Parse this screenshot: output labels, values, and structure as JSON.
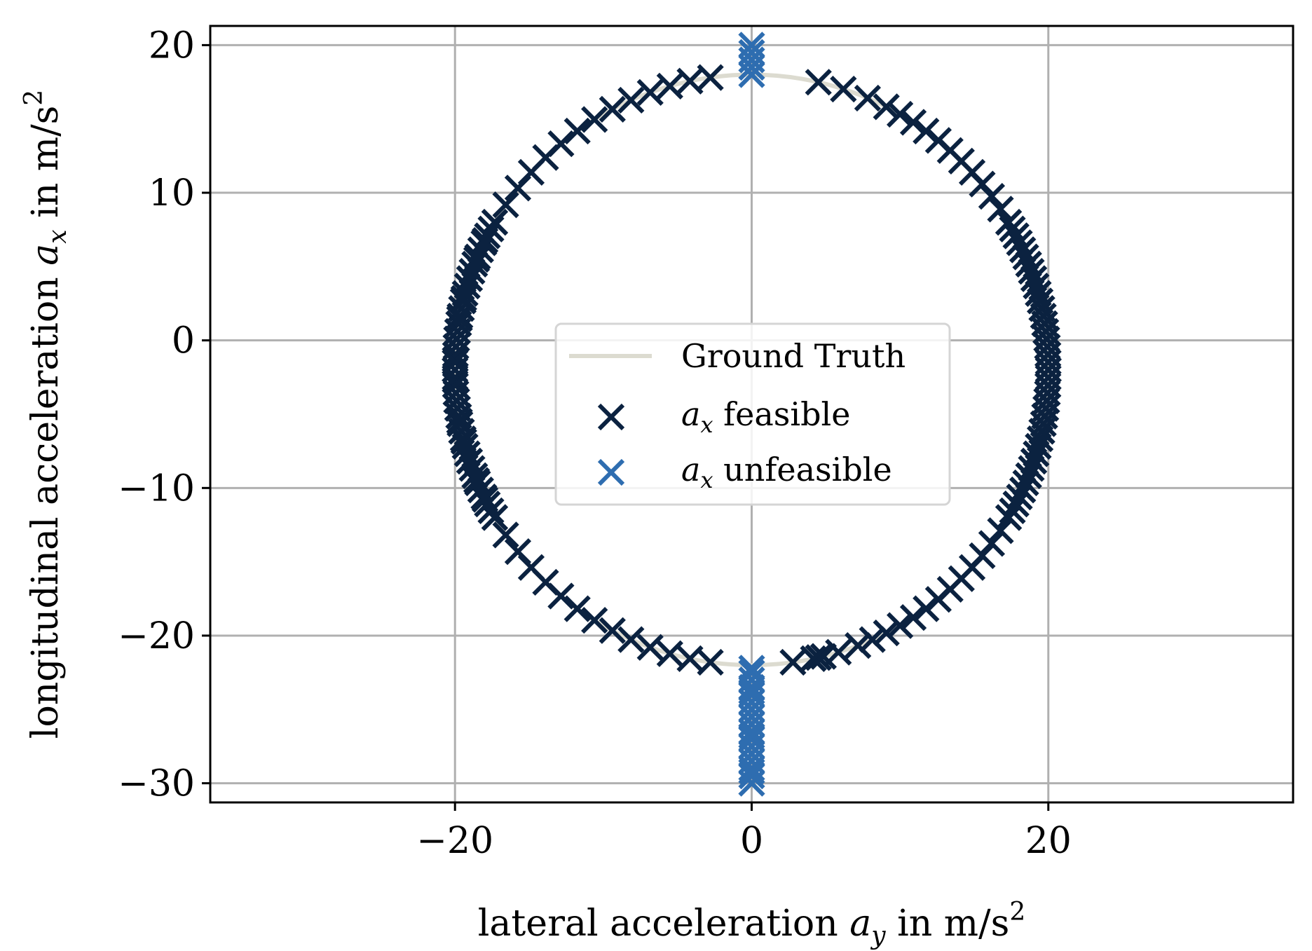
{
  "chart_data": {
    "type": "scatter",
    "title": "",
    "xlabel": "lateral acceleration a_y in m/s²",
    "ylabel": "longitudinal acceleration a_x in m/s²",
    "xlabel_parts": {
      "pre": "lateral acceleration ",
      "var": "a",
      "sub": "y",
      "post": " in m/s",
      "sup": "2"
    },
    "ylabel_parts": {
      "pre": "longitudinal acceleration ",
      "var": "a",
      "sub": "x",
      "post": " in m/s",
      "sup": "2"
    },
    "xlim": [
      -36.5,
      36.5
    ],
    "ylim": [
      -31.3,
      21.3
    ],
    "xticks": [
      -20,
      0,
      20
    ],
    "yticks": [
      -30,
      -20,
      -10,
      0,
      10,
      20
    ],
    "xtick_labels": [
      "−20",
      "0",
      "20"
    ],
    "ytick_labels": [
      "−30",
      "−20",
      "−10",
      "0",
      "10",
      "20"
    ],
    "grid": true,
    "legend_position": "center",
    "ground_truth_ellipse": {
      "center": [
        0,
        -2
      ],
      "radius_y": 20,
      "radius_x": 20
    },
    "series": [
      {
        "name": "Ground Truth",
        "kind": "line",
        "color": "#dcdbd0"
      },
      {
        "name": "a_x feasible",
        "label_var": "a",
        "label_sub": "x",
        "label_post": " feasible",
        "kind": "marker",
        "marker": "x",
        "color": "#0b2240",
        "points_note": "points along ellipse, angles in degrees",
        "angles_deg": [
          13,
          18,
          23,
          27,
          30,
          33,
          36,
          39,
          42,
          45,
          48,
          51,
          54,
          57,
          60,
          63,
          66,
          69,
          72,
          75,
          78,
          81,
          84,
          87,
          90,
          93,
          96,
          99,
          102,
          105,
          108,
          111,
          114,
          117,
          120,
          123,
          126,
          129,
          132,
          135,
          138,
          141,
          144,
          147,
          150,
          153,
          156,
          159,
          163,
          166,
          167,
          168,
          172,
          176,
          180,
          184,
          188,
          192,
          196,
          200,
          204,
          208,
          212,
          216,
          220,
          224,
          228,
          232,
          236,
          240,
          244,
          248,
          252,
          256,
          260,
          264,
          268,
          272,
          276,
          280,
          284,
          288,
          292,
          296,
          300,
          304,
          308,
          312,
          316,
          320,
          324,
          328,
          332,
          336,
          340,
          344,
          348,
          352,
          356,
          360
        ],
        "x": [],
        "y": []
      },
      {
        "name": "a_x unfeasible",
        "label_var": "a",
        "label_sub": "x",
        "label_post": " unfeasible",
        "kind": "marker",
        "marker": "x",
        "color": "#2e6db0",
        "x": [
          0,
          0,
          0,
          0,
          0,
          0,
          0,
          0,
          0,
          0,
          0,
          0,
          0,
          0,
          0,
          0,
          0,
          0,
          0,
          0,
          0,
          0,
          0,
          0,
          0
        ],
        "y": [
          20,
          19.5,
          19,
          18.5,
          18,
          -22.5,
          -23,
          -23.5,
          -24,
          -24.5,
          -25,
          -25.5,
          -26,
          -26.5,
          -27,
          -27.5,
          -28,
          -28.5,
          -29,
          -29.5,
          -30,
          -22.2,
          -23.8,
          -26.8,
          -29.2
        ]
      }
    ]
  }
}
